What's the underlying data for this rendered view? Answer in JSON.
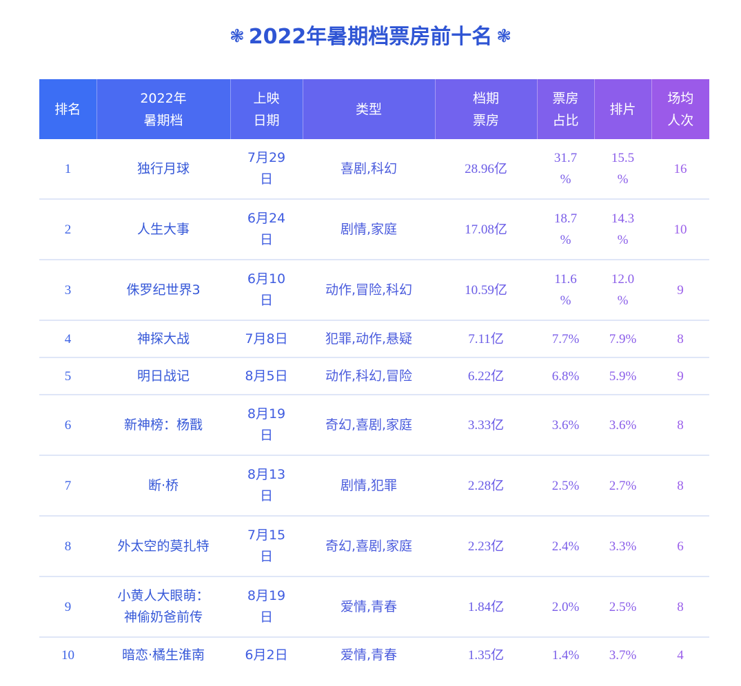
{
  "title": {
    "text": "2022年暑期档票房前十名",
    "left_deco": "❃",
    "right_deco": "❃"
  },
  "colors": {
    "title": "#2f55d4",
    "header_gradient_start": "#3c6ef4",
    "header_gradient_end": "#9b5ae9",
    "row_divider": "#dfe6f7"
  },
  "columns": [
    {
      "key": "rank",
      "lines": [
        "排名"
      ]
    },
    {
      "key": "film",
      "lines": [
        "2022年",
        "暑期档"
      ]
    },
    {
      "key": "date",
      "lines": [
        "上映",
        "日期"
      ]
    },
    {
      "key": "genre",
      "lines": [
        "类型"
      ]
    },
    {
      "key": "box",
      "lines": [
        "档期",
        "票房"
      ]
    },
    {
      "key": "share",
      "lines": [
        "票房",
        "占比"
      ]
    },
    {
      "key": "sched",
      "lines": [
        "排片"
      ]
    },
    {
      "key": "att",
      "lines": [
        "场均",
        "人次"
      ]
    }
  ],
  "rows": [
    {
      "rank": "1",
      "film": [
        "独行月球"
      ],
      "date": [
        "7月29",
        "日"
      ],
      "genre": [
        "喜剧,科幻"
      ],
      "box": [
        "28.96亿"
      ],
      "share": [
        "31.7",
        "%"
      ],
      "sched": [
        "15.5",
        "%"
      ],
      "att": [
        "16"
      ]
    },
    {
      "rank": "2",
      "film": [
        "人生大事"
      ],
      "date": [
        "6月24",
        "日"
      ],
      "genre": [
        "剧情,家庭"
      ],
      "box": [
        "17.08亿"
      ],
      "share": [
        "18.7",
        "%"
      ],
      "sched": [
        "14.3",
        "%"
      ],
      "att": [
        "10"
      ]
    },
    {
      "rank": "3",
      "film": [
        "侏罗纪世界3"
      ],
      "date": [
        "6月10",
        "日"
      ],
      "genre": [
        "动作,冒险,科幻"
      ],
      "box": [
        "10.59亿"
      ],
      "share": [
        "11.6",
        "%"
      ],
      "sched": [
        "12.0",
        "%"
      ],
      "att": [
        "9"
      ]
    },
    {
      "rank": "4",
      "film": [
        "神探大战"
      ],
      "date": [
        "7月8日"
      ],
      "genre": [
        "犯罪,动作,悬疑"
      ],
      "box": [
        "7.11亿"
      ],
      "share": [
        "7.7%"
      ],
      "sched": [
        "7.9%"
      ],
      "att": [
        "8"
      ]
    },
    {
      "rank": "5",
      "film": [
        "明日战记"
      ],
      "date": [
        "8月5日"
      ],
      "genre": [
        "动作,科幻,冒险"
      ],
      "box": [
        "6.22亿"
      ],
      "share": [
        "6.8%"
      ],
      "sched": [
        "5.9%"
      ],
      "att": [
        "9"
      ]
    },
    {
      "rank": "6",
      "film": [
        "新神榜：杨戬"
      ],
      "date": [
        "8月19",
        "日"
      ],
      "genre": [
        "奇幻,喜剧,家庭"
      ],
      "box": [
        "3.33亿"
      ],
      "share": [
        "3.6%"
      ],
      "sched": [
        "3.6%"
      ],
      "att": [
        "8"
      ]
    },
    {
      "rank": "7",
      "film": [
        "断·桥"
      ],
      "date": [
        "8月13",
        "日"
      ],
      "genre": [
        "剧情,犯罪"
      ],
      "box": [
        "2.28亿"
      ],
      "share": [
        "2.5%"
      ],
      "sched": [
        "2.7%"
      ],
      "att": [
        "8"
      ]
    },
    {
      "rank": "8",
      "film": [
        "外太空的莫扎特"
      ],
      "date": [
        "7月15",
        "日"
      ],
      "genre": [
        "奇幻,喜剧,家庭"
      ],
      "box": [
        "2.23亿"
      ],
      "share": [
        "2.4%"
      ],
      "sched": [
        "3.3%"
      ],
      "att": [
        "6"
      ]
    },
    {
      "rank": "9",
      "film": [
        "小黄人大眼萌：",
        "神偷奶爸前传"
      ],
      "date": [
        "8月19",
        "日"
      ],
      "genre": [
        "爱情,青春"
      ],
      "box": [
        "1.84亿"
      ],
      "share": [
        "2.0%"
      ],
      "sched": [
        "2.5%"
      ],
      "att": [
        "8"
      ]
    },
    {
      "rank": "10",
      "film": [
        "暗恋·橘生淮南"
      ],
      "date": [
        "6月2日"
      ],
      "genre": [
        "爱情,青春"
      ],
      "box": [
        "1.35亿"
      ],
      "share": [
        "1.4%"
      ],
      "sched": [
        "3.7%"
      ],
      "att": [
        "4"
      ]
    }
  ]
}
